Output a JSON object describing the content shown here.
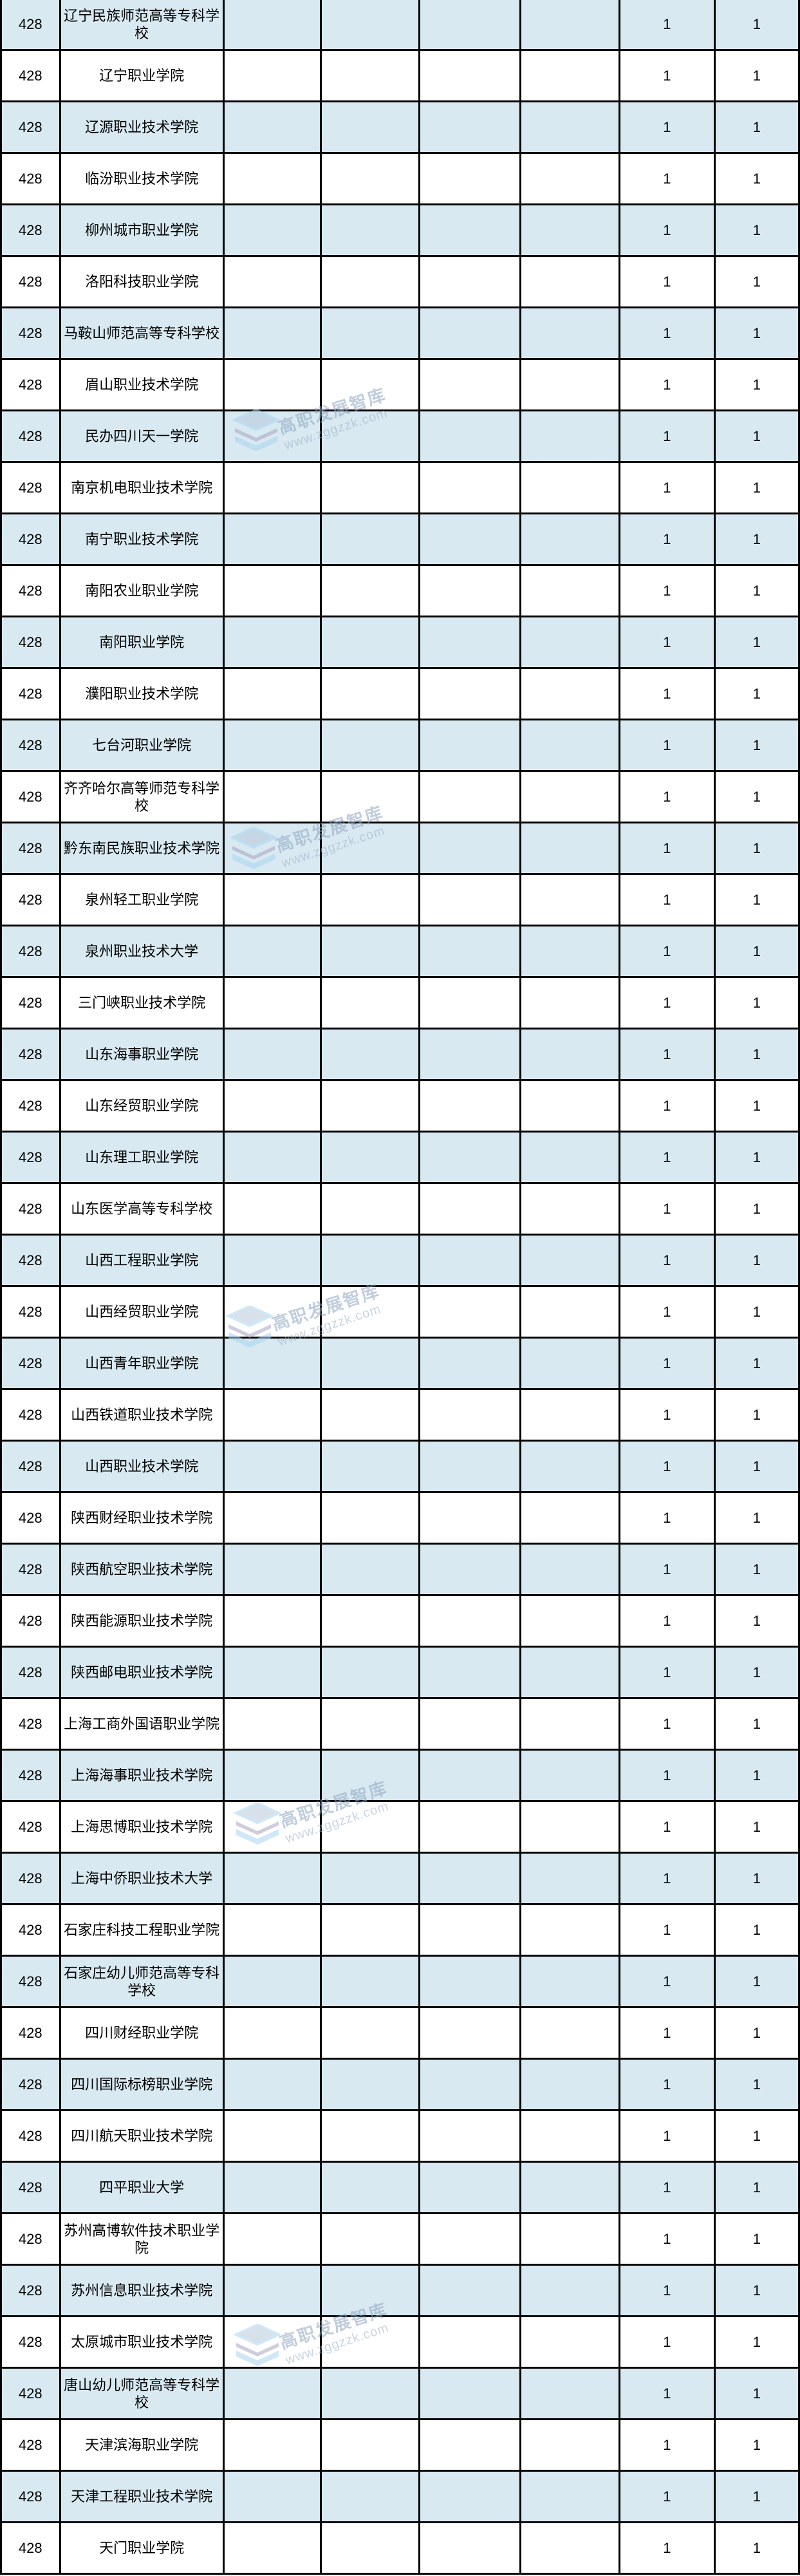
{
  "page": {
    "background": "#ffffff",
    "row_fill_odd": "#d8e9f1",
    "row_fill_even": "#ffffff",
    "border_color": "#000000"
  },
  "watermark": {
    "line1": "高职发展智库",
    "line2": "www.zggzzk.com",
    "icon": "layers-stack-icon",
    "icon_color_blue": "#a8d4f0",
    "icon_color_gray": "#aaa3c2"
  },
  "table": {
    "rank_value": "428",
    "metric_value": "1",
    "rows": [
      [
        "428",
        "辽宁民族师范高等专科学校",
        "",
        "",
        "",
        "",
        "1",
        "1"
      ],
      [
        "428",
        "辽宁职业学院",
        "",
        "",
        "",
        "",
        "1",
        "1"
      ],
      [
        "428",
        "辽源职业技术学院",
        "",
        "",
        "",
        "",
        "1",
        "1"
      ],
      [
        "428",
        "临汾职业技术学院",
        "",
        "",
        "",
        "",
        "1",
        "1"
      ],
      [
        "428",
        "柳州城市职业学院",
        "",
        "",
        "",
        "",
        "1",
        "1"
      ],
      [
        "428",
        "洛阳科技职业学院",
        "",
        "",
        "",
        "",
        "1",
        "1"
      ],
      [
        "428",
        "马鞍山师范高等专科学校",
        "",
        "",
        "",
        "",
        "1",
        "1"
      ],
      [
        "428",
        "眉山职业技术学院",
        "",
        "",
        "",
        "",
        "1",
        "1"
      ],
      [
        "428",
        "民办四川天一学院",
        "",
        "",
        "",
        "",
        "1",
        "1"
      ],
      [
        "428",
        "南京机电职业技术学院",
        "",
        "",
        "",
        "",
        "1",
        "1"
      ],
      [
        "428",
        "南宁职业技术学院",
        "",
        "",
        "",
        "",
        "1",
        "1"
      ],
      [
        "428",
        "南阳农业职业学院",
        "",
        "",
        "",
        "",
        "1",
        "1"
      ],
      [
        "428",
        "南阳职业学院",
        "",
        "",
        "",
        "",
        "1",
        "1"
      ],
      [
        "428",
        "濮阳职业技术学院",
        "",
        "",
        "",
        "",
        "1",
        "1"
      ],
      [
        "428",
        "七台河职业学院",
        "",
        "",
        "",
        "",
        "1",
        "1"
      ],
      [
        "428",
        "齐齐哈尔高等师范专科学校",
        "",
        "",
        "",
        "",
        "1",
        "1"
      ],
      [
        "428",
        "黔东南民族职业技术学院",
        "",
        "",
        "",
        "",
        "1",
        "1"
      ],
      [
        "428",
        "泉州轻工职业学院",
        "",
        "",
        "",
        "",
        "1",
        "1"
      ],
      [
        "428",
        "泉州职业技术大学",
        "",
        "",
        "",
        "",
        "1",
        "1"
      ],
      [
        "428",
        "三门峡职业技术学院",
        "",
        "",
        "",
        "",
        "1",
        "1"
      ],
      [
        "428",
        "山东海事职业学院",
        "",
        "",
        "",
        "",
        "1",
        "1"
      ],
      [
        "428",
        "山东经贸职业学院",
        "",
        "",
        "",
        "",
        "1",
        "1"
      ],
      [
        "428",
        "山东理工职业学院",
        "",
        "",
        "",
        "",
        "1",
        "1"
      ],
      [
        "428",
        "山东医学高等专科学校",
        "",
        "",
        "",
        "",
        "1",
        "1"
      ],
      [
        "428",
        "山西工程职业学院",
        "",
        "",
        "",
        "",
        "1",
        "1"
      ],
      [
        "428",
        "山西经贸职业学院",
        "",
        "",
        "",
        "",
        "1",
        "1"
      ],
      [
        "428",
        "山西青年职业学院",
        "",
        "",
        "",
        "",
        "1",
        "1"
      ],
      [
        "428",
        "山西铁道职业技术学院",
        "",
        "",
        "",
        "",
        "1",
        "1"
      ],
      [
        "428",
        "山西职业技术学院",
        "",
        "",
        "",
        "",
        "1",
        "1"
      ],
      [
        "428",
        "陕西财经职业技术学院",
        "",
        "",
        "",
        "",
        "1",
        "1"
      ],
      [
        "428",
        "陕西航空职业技术学院",
        "",
        "",
        "",
        "",
        "1",
        "1"
      ],
      [
        "428",
        "陕西能源职业技术学院",
        "",
        "",
        "",
        "",
        "1",
        "1"
      ],
      [
        "428",
        "陕西邮电职业技术学院",
        "",
        "",
        "",
        "",
        "1",
        "1"
      ],
      [
        "428",
        "上海工商外国语职业学院",
        "",
        "",
        "",
        "",
        "1",
        "1"
      ],
      [
        "428",
        "上海海事职业技术学院",
        "",
        "",
        "",
        "",
        "1",
        "1"
      ],
      [
        "428",
        "上海思博职业技术学院",
        "",
        "",
        "",
        "",
        "1",
        "1"
      ],
      [
        "428",
        "上海中侨职业技术大学",
        "",
        "",
        "",
        "",
        "1",
        "1"
      ],
      [
        "428",
        "石家庄科技工程职业学院",
        "",
        "",
        "",
        "",
        "1",
        "1"
      ],
      [
        "428",
        "石家庄幼儿师范高等专科学校",
        "",
        "",
        "",
        "",
        "1",
        "1"
      ],
      [
        "428",
        "四川财经职业学院",
        "",
        "",
        "",
        "",
        "1",
        "1"
      ],
      [
        "428",
        "四川国际标榜职业学院",
        "",
        "",
        "",
        "",
        "1",
        "1"
      ],
      [
        "428",
        "四川航天职业技术学院",
        "",
        "",
        "",
        "",
        "1",
        "1"
      ],
      [
        "428",
        "四平职业大学",
        "",
        "",
        "",
        "",
        "1",
        "1"
      ],
      [
        "428",
        "苏州高博软件技术职业学院",
        "",
        "",
        "",
        "",
        "1",
        "1"
      ],
      [
        "428",
        "苏州信息职业技术学院",
        "",
        "",
        "",
        "",
        "1",
        "1"
      ],
      [
        "428",
        "太原城市职业技术学院",
        "",
        "",
        "",
        "",
        "1",
        "1"
      ],
      [
        "428",
        "唐山幼儿师范高等专科学校",
        "",
        "",
        "",
        "",
        "1",
        "1"
      ],
      [
        "428",
        "天津滨海职业学院",
        "",
        "",
        "",
        "",
        "1",
        "1"
      ],
      [
        "428",
        "天津工程职业技术学院",
        "",
        "",
        "",
        "",
        "1",
        "1"
      ],
      [
        "428",
        "天门职业学院",
        "",
        "",
        "",
        "",
        "1",
        "1"
      ]
    ]
  }
}
